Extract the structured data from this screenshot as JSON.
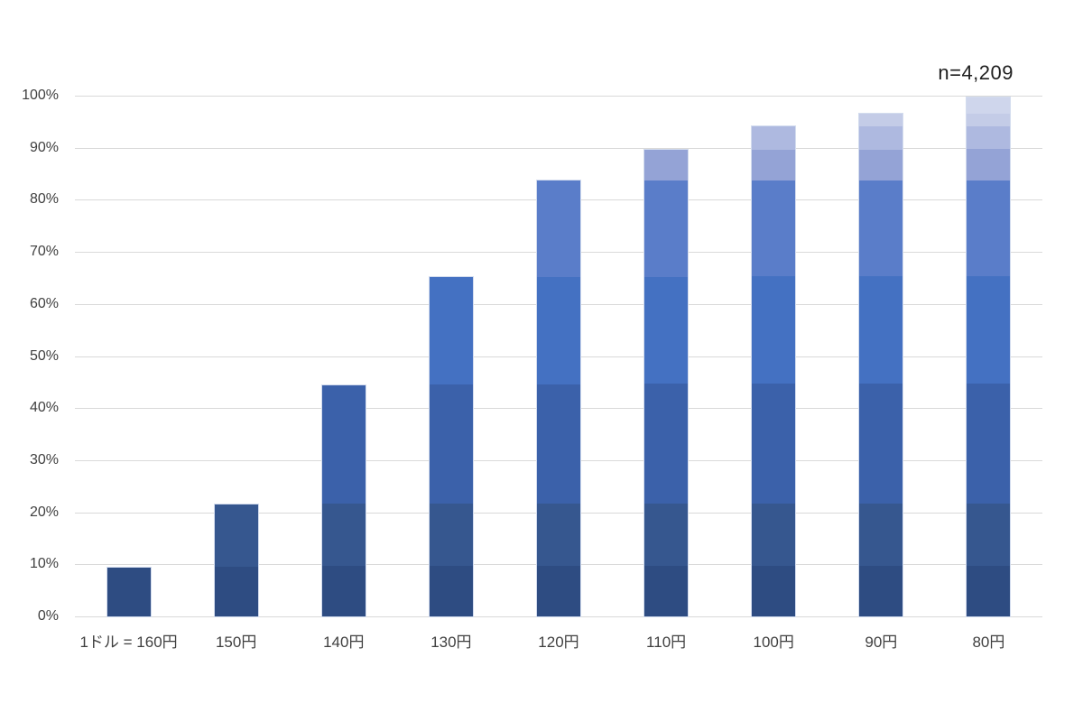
{
  "chart_data": {
    "type": "bar",
    "subtype": "stacked-cumulative",
    "title": "",
    "annotation": "n=4,209",
    "categories": [
      "1ドル = 160円",
      "150円",
      "140円",
      "130円",
      "120円",
      "110円",
      "100円",
      "90円",
      "80円"
    ],
    "y_ticks": [
      "0%",
      "10%",
      "20%",
      "30%",
      "40%",
      "50%",
      "60%",
      "70%",
      "80%",
      "90%",
      "100%"
    ],
    "ylim": [
      0,
      100
    ],
    "grid": "horizontal",
    "legend": "none",
    "palette": [
      "#2e4c82",
      "#36578f",
      "#3b61aa",
      "#4471c2",
      "#5a7dc9",
      "#94a3d6",
      "#aeb9e0",
      "#c4cce7",
      "#cfd6ec"
    ],
    "cumulative_percent": [
      9.7,
      21.8,
      44.8,
      65.5,
      84.0,
      90.0,
      94.5,
      96.9,
      100.0
    ],
    "stacks": [
      [
        9.7
      ],
      [
        9.7,
        12.1
      ],
      [
        9.7,
        12.1,
        23.0
      ],
      [
        9.7,
        12.1,
        23.0,
        20.7
      ],
      [
        9.7,
        12.1,
        23.0,
        20.7,
        18.5
      ],
      [
        9.7,
        12.1,
        23.0,
        20.7,
        18.5,
        6.0
      ],
      [
        9.7,
        12.1,
        23.0,
        20.7,
        18.5,
        6.0,
        4.5
      ],
      [
        9.7,
        12.1,
        23.0,
        20.7,
        18.5,
        6.0,
        4.5,
        2.4
      ],
      [
        9.7,
        12.1,
        23.0,
        20.7,
        18.5,
        6.0,
        4.5,
        2.4,
        3.1
      ]
    ]
  },
  "colors": {
    "background": "#ffffff",
    "gridline": "#d9d9d9",
    "axis_text": "#3f3f3f",
    "annotation_text": "#1f1f1f",
    "bar_border": "#d3dcee"
  }
}
